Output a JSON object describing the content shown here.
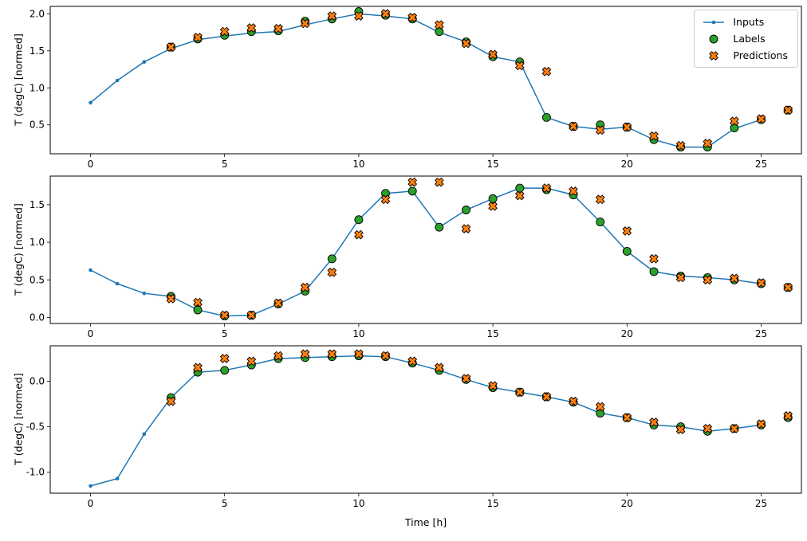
{
  "figure": {
    "type": "matplotlib-figure",
    "background": "#ffffff",
    "subplot_count": 3
  },
  "legend": {
    "position": "upper-right",
    "items": [
      {
        "label": "Inputs",
        "color": "#1f77b4",
        "marker": "line-with-dot"
      },
      {
        "label": "Labels",
        "color": "#2ca02c",
        "edgecolor": "#000000",
        "marker": "filled-circle"
      },
      {
        "label": "Predictions",
        "color": "#ff7f0e",
        "edgecolor": "#000000",
        "marker": "x-cross"
      }
    ]
  },
  "chart_data": [
    {
      "type": "line+scatter",
      "title": "",
      "xlabel": "",
      "ylabel": "T (degC) [normed]",
      "xlim": [
        -1.5,
        26.5
      ],
      "ylim": [
        0.11,
        2.1
      ],
      "grid": false,
      "legend_position": "upper right",
      "xticks": {
        "values": [
          0,
          5,
          10,
          15,
          20,
          25
        ],
        "labels": [
          "0",
          "5",
          "10",
          "15",
          "20",
          "25"
        ]
      },
      "yticks": {
        "values": [
          0.5,
          1.0,
          1.5,
          2.0
        ],
        "labels": [
          "0.5",
          "1.0",
          "1.5",
          "2.0"
        ]
      },
      "series": [
        {
          "name": "Inputs",
          "plot": "line",
          "marker": "dot",
          "color": "#1f77b4",
          "x": [
            0,
            1,
            2,
            3,
            4,
            5,
            6,
            7,
            8,
            9,
            10,
            11,
            12,
            13,
            14,
            15,
            16,
            17,
            18,
            19,
            20,
            21,
            22,
            23,
            24,
            25
          ],
          "y": [
            0.8,
            1.1,
            1.35,
            1.53,
            1.65,
            1.7,
            1.74,
            1.76,
            1.85,
            1.93,
            2.0,
            1.97,
            1.93,
            1.75,
            1.62,
            1.42,
            1.35,
            0.6,
            0.48,
            0.44,
            0.47,
            0.3,
            0.2,
            0.2,
            0.45,
            0.57
          ]
        },
        {
          "name": "Labels",
          "plot": "scatter",
          "marker": "filled-circle",
          "color": "#2ca02c",
          "edgecolor": "#000000",
          "x": [
            3,
            4,
            5,
            6,
            7,
            8,
            9,
            10,
            11,
            12,
            13,
            14,
            15,
            16,
            17,
            18,
            19,
            20,
            21,
            22,
            23,
            24,
            25,
            26
          ],
          "y": [
            1.55,
            1.66,
            1.71,
            1.76,
            1.77,
            1.9,
            1.93,
            2.03,
            1.98,
            1.93,
            1.76,
            1.62,
            1.42,
            1.35,
            0.6,
            0.48,
            0.5,
            0.47,
            0.3,
            0.2,
            0.2,
            0.46,
            0.57,
            0.7
          ]
        },
        {
          "name": "Predictions",
          "plot": "scatter",
          "marker": "x-cross",
          "color": "#ff7f0e",
          "edgecolor": "#000000",
          "x": [
            3,
            4,
            5,
            6,
            7,
            8,
            9,
            10,
            11,
            12,
            13,
            14,
            15,
            16,
            17,
            18,
            19,
            20,
            21,
            22,
            23,
            24,
            25,
            26
          ],
          "y": [
            1.55,
            1.68,
            1.76,
            1.81,
            1.8,
            1.87,
            1.97,
            1.97,
            2.0,
            1.95,
            1.85,
            1.6,
            1.45,
            1.3,
            1.22,
            0.48,
            0.43,
            0.47,
            0.35,
            0.22,
            0.25,
            0.55,
            0.58,
            0.7
          ]
        }
      ]
    },
    {
      "type": "line+scatter",
      "title": "",
      "xlabel": "",
      "ylabel": "T (degC) [normed]",
      "xlim": [
        -1.5,
        26.5
      ],
      "ylim": [
        -0.08,
        1.88
      ],
      "grid": false,
      "xticks": {
        "values": [
          0,
          5,
          10,
          15,
          20,
          25
        ],
        "labels": [
          "0",
          "5",
          "10",
          "15",
          "20",
          "25"
        ]
      },
      "yticks": {
        "values": [
          0.0,
          0.5,
          1.0,
          1.5
        ],
        "labels": [
          "0.0",
          "0.5",
          "1.0",
          "1.5"
        ]
      },
      "series": [
        {
          "name": "Inputs",
          "plot": "line",
          "marker": "dot",
          "color": "#1f77b4",
          "x": [
            0,
            1,
            2,
            3,
            4,
            5,
            6,
            7,
            8,
            9,
            10,
            11,
            12,
            13,
            14,
            15,
            16,
            17,
            18,
            19,
            20,
            21,
            22,
            23,
            24,
            25
          ],
          "y": [
            0.63,
            0.45,
            0.32,
            0.28,
            0.1,
            0.02,
            0.03,
            0.18,
            0.35,
            0.78,
            1.3,
            1.65,
            1.68,
            1.2,
            1.43,
            1.58,
            1.72,
            1.72,
            1.63,
            1.27,
            0.88,
            0.61,
            0.55,
            0.53,
            0.5,
            0.45
          ]
        },
        {
          "name": "Labels",
          "plot": "scatter",
          "marker": "filled-circle",
          "color": "#2ca02c",
          "edgecolor": "#000000",
          "x": [
            3,
            4,
            5,
            6,
            7,
            8,
            9,
            10,
            11,
            12,
            13,
            14,
            15,
            16,
            17,
            18,
            19,
            20,
            21,
            22,
            23,
            24,
            25,
            26
          ],
          "y": [
            0.28,
            0.1,
            0.02,
            0.03,
            0.18,
            0.35,
            0.78,
            1.3,
            1.65,
            1.68,
            1.2,
            1.43,
            1.58,
            1.72,
            1.7,
            1.63,
            1.27,
            0.88,
            0.61,
            0.55,
            0.53,
            0.5,
            0.45,
            0.4
          ]
        },
        {
          "name": "Predictions",
          "plot": "scatter",
          "marker": "x-cross",
          "color": "#ff7f0e",
          "edgecolor": "#000000",
          "x": [
            3,
            4,
            5,
            6,
            7,
            8,
            9,
            10,
            11,
            12,
            13,
            14,
            15,
            16,
            17,
            18,
            19,
            20,
            21,
            22,
            23,
            24,
            25,
            26
          ],
          "y": [
            0.25,
            0.2,
            0.03,
            0.03,
            0.19,
            0.4,
            0.6,
            1.1,
            1.57,
            1.8,
            1.8,
            1.18,
            1.48,
            1.62,
            1.72,
            1.68,
            1.57,
            1.15,
            0.78,
            0.53,
            0.5,
            0.52,
            0.46,
            0.4
          ]
        }
      ]
    },
    {
      "type": "line+scatter",
      "title": "",
      "xlabel": "Time [h]",
      "ylabel": "T (degC) [normed]",
      "xlim": [
        -1.5,
        26.5
      ],
      "ylim": [
        -1.23,
        0.39
      ],
      "grid": false,
      "xticks": {
        "values": [
          0,
          5,
          10,
          15,
          20,
          25
        ],
        "labels": [
          "0",
          "5",
          "10",
          "15",
          "20",
          "25"
        ]
      },
      "yticks": {
        "values": [
          -1.0,
          -0.5,
          0.0
        ],
        "labels": [
          "-1.0",
          "-0.5",
          "0.0"
        ]
      },
      "series": [
        {
          "name": "Inputs",
          "plot": "line",
          "marker": "dot",
          "color": "#1f77b4",
          "x": [
            0,
            1,
            2,
            3,
            4,
            5,
            6,
            7,
            8,
            9,
            10,
            11,
            12,
            13,
            14,
            15,
            16,
            17,
            18,
            19,
            20,
            21,
            22,
            23,
            24,
            25
          ],
          "y": [
            -1.15,
            -1.07,
            -0.58,
            -0.18,
            0.1,
            0.12,
            0.18,
            0.25,
            0.26,
            0.27,
            0.28,
            0.27,
            0.2,
            0.12,
            0.02,
            -0.07,
            -0.12,
            -0.17,
            -0.23,
            -0.35,
            -0.4,
            -0.48,
            -0.5,
            -0.55,
            -0.52,
            -0.48
          ]
        },
        {
          "name": "Labels",
          "plot": "scatter",
          "marker": "filled-circle",
          "color": "#2ca02c",
          "edgecolor": "#000000",
          "x": [
            3,
            4,
            5,
            6,
            7,
            8,
            9,
            10,
            11,
            12,
            13,
            14,
            15,
            16,
            17,
            18,
            19,
            20,
            21,
            22,
            23,
            24,
            25,
            26
          ],
          "y": [
            -0.18,
            0.1,
            0.12,
            0.18,
            0.25,
            0.26,
            0.27,
            0.28,
            0.27,
            0.2,
            0.12,
            0.02,
            -0.07,
            -0.12,
            -0.17,
            -0.23,
            -0.35,
            -0.4,
            -0.48,
            -0.5,
            -0.55,
            -0.52,
            -0.48,
            -0.4
          ]
        },
        {
          "name": "Predictions",
          "plot": "scatter",
          "marker": "x-cross",
          "color": "#ff7f0e",
          "edgecolor": "#000000",
          "x": [
            3,
            4,
            5,
            6,
            7,
            8,
            9,
            10,
            11,
            12,
            13,
            14,
            15,
            16,
            17,
            18,
            19,
            20,
            21,
            22,
            23,
            24,
            25,
            26
          ],
          "y": [
            -0.22,
            0.15,
            0.25,
            0.22,
            0.28,
            0.3,
            0.3,
            0.3,
            0.28,
            0.22,
            0.15,
            0.03,
            -0.05,
            -0.12,
            -0.17,
            -0.22,
            -0.28,
            -0.4,
            -0.45,
            -0.53,
            -0.52,
            -0.52,
            -0.47,
            -0.38
          ]
        }
      ]
    }
  ]
}
